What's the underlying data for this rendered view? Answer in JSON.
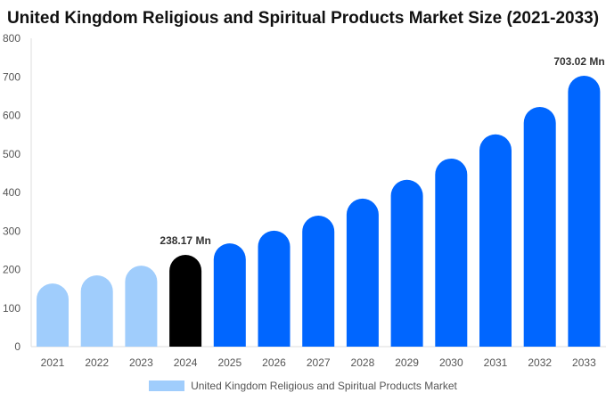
{
  "chart_data": {
    "type": "bar",
    "title": "United Kingdom Religious and Spiritual Products Market Size (2021-2033)",
    "categories": [
      "2021",
      "2022",
      "2023",
      "2024",
      "2025",
      "2026",
      "2027",
      "2028",
      "2029",
      "2030",
      "2031",
      "2032",
      "2033"
    ],
    "series": [
      {
        "name": "United Kingdom Religious and Spiritual Products Market",
        "values": [
          164,
          185,
          210,
          238.17,
          268,
          301,
          340,
          384,
          433,
          488,
          551,
          622,
          703.02
        ]
      }
    ],
    "data_labels": [
      {
        "category": "2024",
        "text": "238.17 Mn"
      },
      {
        "category": "2033",
        "text": "703.02 Mn"
      }
    ],
    "ylim": [
      0,
      800
    ],
    "yticks": [
      0,
      100,
      200,
      300,
      400,
      500,
      600,
      700,
      800
    ],
    "grid": false,
    "legend": "bottom",
    "colors": {
      "historical": "#a0cdfc",
      "current": "#000000",
      "forecast": "#0066ff"
    },
    "color_by_category": [
      "historical",
      "historical",
      "historical",
      "current",
      "forecast",
      "forecast",
      "forecast",
      "forecast",
      "forecast",
      "forecast",
      "forecast",
      "forecast",
      "forecast"
    ]
  }
}
